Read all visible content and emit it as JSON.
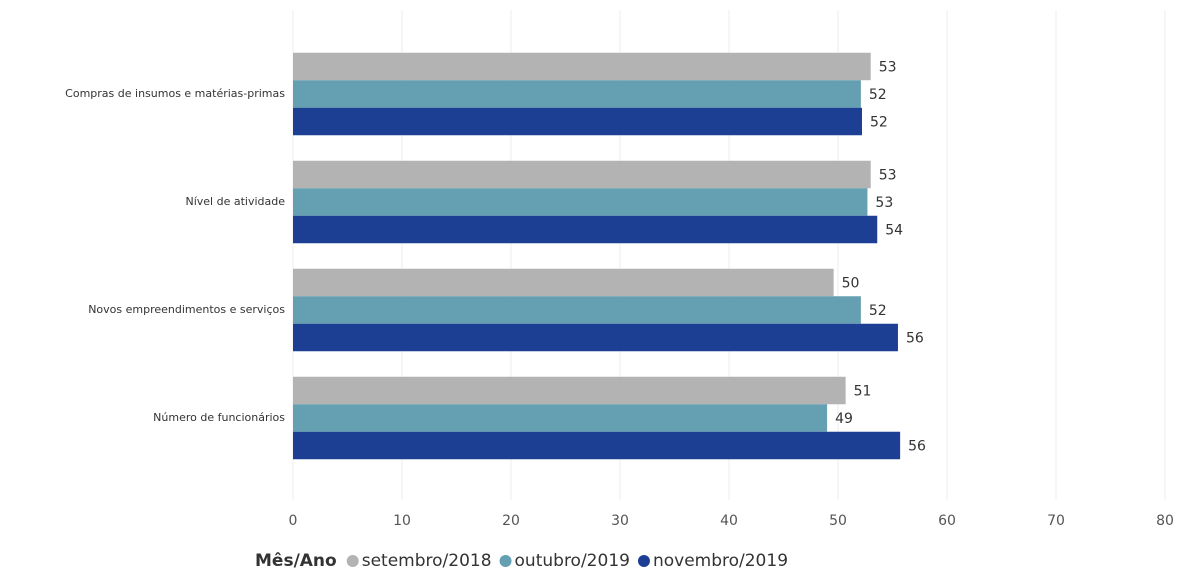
{
  "chart_data": {
    "type": "bar",
    "orientation": "horizontal",
    "categories": [
      "Compras de insumos e matérias-primas",
      "Nível de atividade",
      "Novos empreendimentos e serviços",
      "Número de funcionários"
    ],
    "series": [
      {
        "name": "setembro/2018",
        "color": "#b3b3b3",
        "values": [
          53.0,
          53.0,
          49.6,
          50.7
        ],
        "value_labels": [
          "53",
          "53",
          "50",
          "51"
        ]
      },
      {
        "name": "outubro/2019",
        "color": "#659fb2",
        "values": [
          52.1,
          52.7,
          52.1,
          49.0
        ],
        "value_labels": [
          "52",
          "53",
          "52",
          "49"
        ]
      },
      {
        "name": "novembro/2019",
        "color": "#1c3f94",
        "values": [
          52.2,
          53.6,
          55.5,
          55.7
        ],
        "value_labels": [
          "52",
          "54",
          "56",
          "56"
        ]
      }
    ],
    "legend_title": "Mês/Ano",
    "xlim": [
      0,
      80
    ],
    "xticks": [
      0,
      10,
      20,
      30,
      40,
      50,
      60,
      70,
      80
    ],
    "grid": true
  }
}
